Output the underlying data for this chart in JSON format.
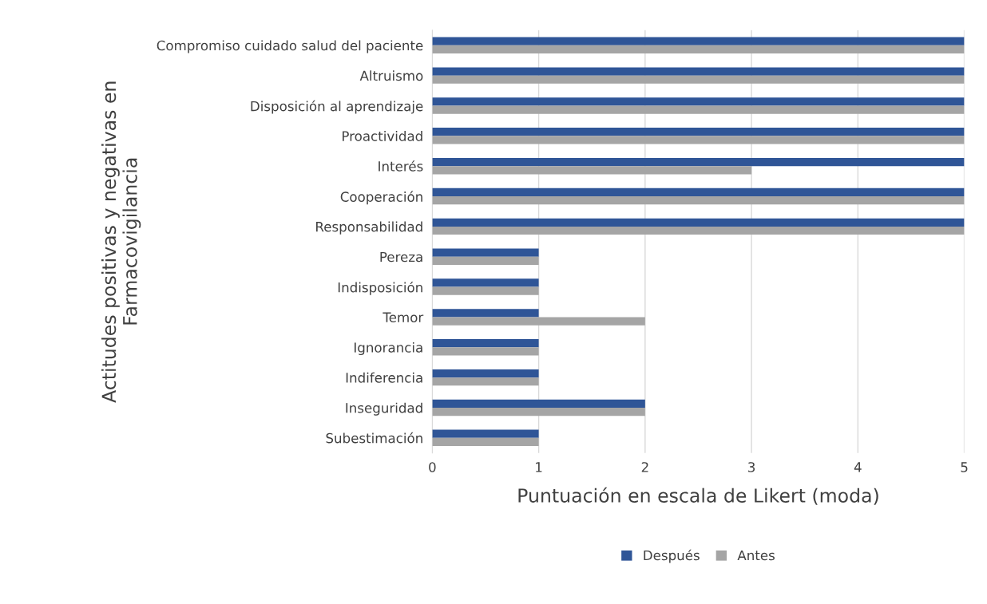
{
  "chart_data": {
    "type": "bar",
    "orientation": "horizontal",
    "xlabel": "Puntuación en escala de Likert (moda)",
    "ylabel": "Actitudes positivas y negativas en\nFarmacovigilancia",
    "categories": [
      "Compromiso cuidado salud del paciente",
      "Altruismo",
      "Disposición al aprendizaje",
      "Proactividad",
      "Interés",
      "Cooperación",
      "Responsabilidad",
      "Pereza",
      "Indisposición",
      "Temor",
      "Ignorancia",
      "Indiferencia",
      "Inseguridad",
      "Subestimación"
    ],
    "series": [
      {
        "name": "Después",
        "color": "#2f5597",
        "values": [
          5,
          5,
          5,
          5,
          5,
          5,
          5,
          1,
          1,
          1,
          1,
          1,
          2,
          1
        ]
      },
      {
        "name": "Antes",
        "color": "#a5a5a5",
        "values": [
          5,
          5,
          5,
          5,
          3,
          5,
          5,
          1,
          1,
          2,
          1,
          1,
          2,
          1
        ]
      }
    ],
    "xlim": [
      0,
      5
    ],
    "xticks": [
      0,
      1,
      2,
      3,
      4,
      5
    ],
    "grid": "x",
    "legend": "bottom"
  }
}
